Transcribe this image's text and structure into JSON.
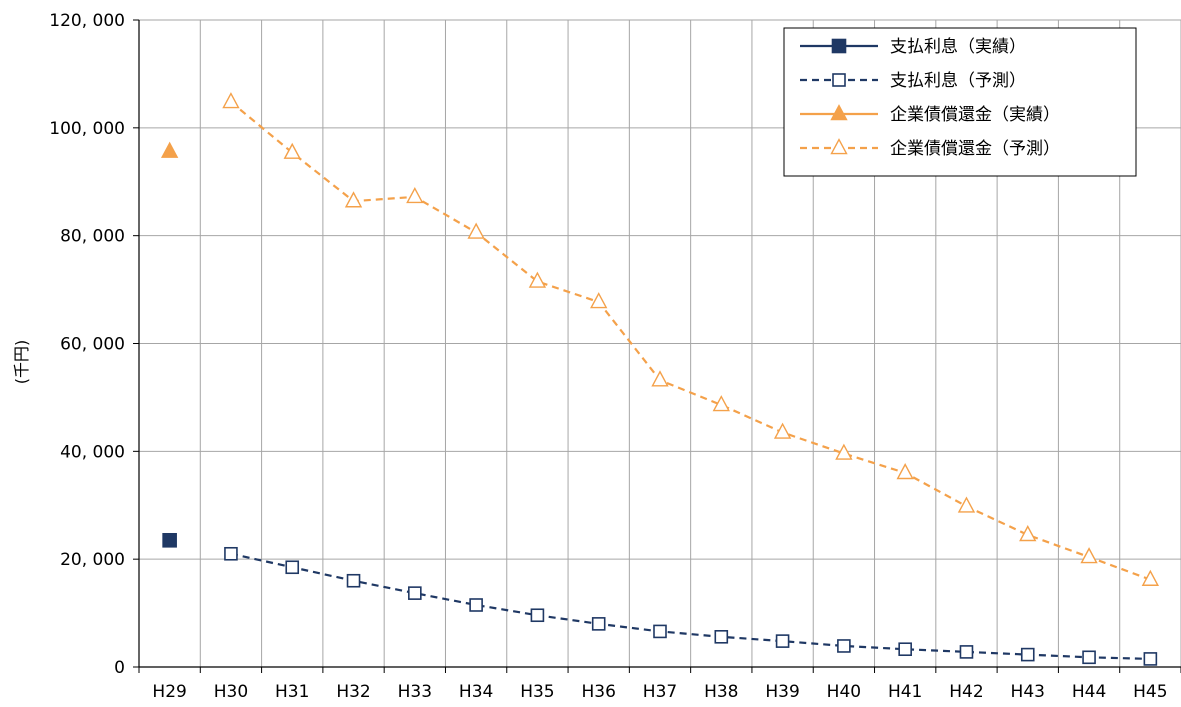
{
  "chart_data": {
    "type": "line",
    "ylabel": "(千円)",
    "xlabel": "",
    "ylim": [
      0,
      120000
    ],
    "y_ticks": [
      0,
      20000,
      40000,
      60000,
      80000,
      100000,
      120000
    ],
    "y_tick_labels": [
      "0",
      "20, 000",
      "40, 000",
      "60, 000",
      "80, 000",
      "100, 000",
      "120, 000"
    ],
    "grid": true,
    "legend_position": "top-right",
    "categories": [
      "H29",
      "H30",
      "H31",
      "H32",
      "H33",
      "H34",
      "H35",
      "H36",
      "H37",
      "H38",
      "H39",
      "H40",
      "H41",
      "H42",
      "H43",
      "H44",
      "H45"
    ],
    "series": [
      {
        "name": "支払利息（実績）",
        "color": "#1f3864",
        "line": "solid",
        "marker": "square-filled",
        "values": [
          23500,
          null,
          null,
          null,
          null,
          null,
          null,
          null,
          null,
          null,
          null,
          null,
          null,
          null,
          null,
          null,
          null
        ]
      },
      {
        "name": "支払利息（予測）",
        "color": "#1f3864",
        "line": "dashed",
        "marker": "square-open",
        "values": [
          null,
          21000,
          18500,
          16000,
          13700,
          11500,
          9600,
          8000,
          6600,
          5600,
          4800,
          3900,
          3300,
          2800,
          2300,
          1800,
          1500
        ]
      },
      {
        "name": "企業債償還金（実績）",
        "color": "#f4a14a",
        "line": "solid",
        "marker": "triangle-filled",
        "values": [
          95600,
          null,
          null,
          null,
          null,
          null,
          null,
          null,
          null,
          null,
          null,
          null,
          null,
          null,
          null,
          null,
          null
        ]
      },
      {
        "name": "企業債償還金（予測）",
        "color": "#f4a14a",
        "line": "dashed",
        "marker": "triangle-open",
        "values": [
          null,
          104800,
          95400,
          86400,
          87200,
          80600,
          71500,
          67700,
          53200,
          48600,
          43500,
          39600,
          36000,
          29800,
          24500,
          20400,
          16200
        ]
      }
    ]
  }
}
